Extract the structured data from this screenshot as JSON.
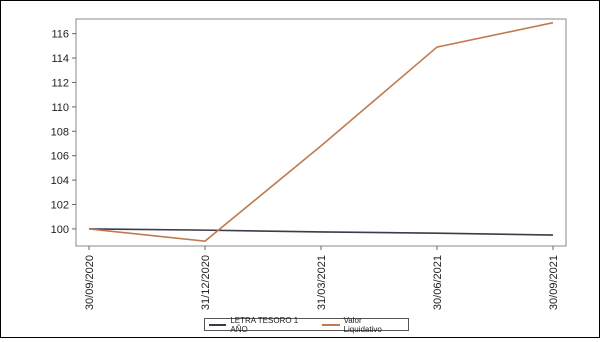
{
  "chart_data": {
    "type": "line",
    "x": [
      "30/09/2020",
      "31/12/2020",
      "31/03/2021",
      "30/06/2021",
      "30/09/2021"
    ],
    "yticks": [
      100,
      102,
      104,
      106,
      108,
      110,
      112,
      114,
      116
    ],
    "ylim": [
      98.6,
      117.2
    ],
    "grid": false,
    "legend_position": "bottom",
    "series": [
      {
        "name": "LETRA TESORO 1 AÑO",
        "color": "#3b3b4a",
        "values": [
          100.0,
          99.9,
          99.75,
          99.65,
          99.5
        ]
      },
      {
        "name": "Valor Liquidativo",
        "color": "#c07a50",
        "values": [
          100.0,
          99.0,
          106.8,
          114.9,
          116.9
        ]
      }
    ]
  }
}
